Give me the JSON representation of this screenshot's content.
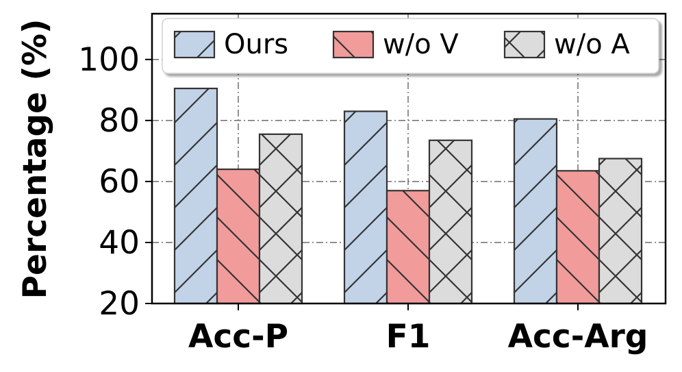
{
  "chart_data": {
    "type": "bar",
    "title": "",
    "xlabel": "",
    "ylabel": "Percentage (%)",
    "categories": [
      "Acc-P",
      "F1",
      "Acc-Arg"
    ],
    "series": [
      {
        "name": "Ours",
        "values": [
          90.5,
          83.0,
          80.5
        ],
        "color": "#c2d3e8",
        "hatch": "forward-diagonal"
      },
      {
        "name": "w/o V",
        "values": [
          64.0,
          57.0,
          63.5
        ],
        "color": "#f29b9b",
        "hatch": "back-diagonal"
      },
      {
        "name": "w/o A",
        "values": [
          75.5,
          73.5,
          67.5
        ],
        "color": "#dcdcdc",
        "hatch": "cross"
      }
    ],
    "ylim": [
      20,
      115
    ],
    "yticks": [
      20,
      40,
      60,
      80,
      100
    ],
    "grid": true,
    "legend_position": "top"
  }
}
